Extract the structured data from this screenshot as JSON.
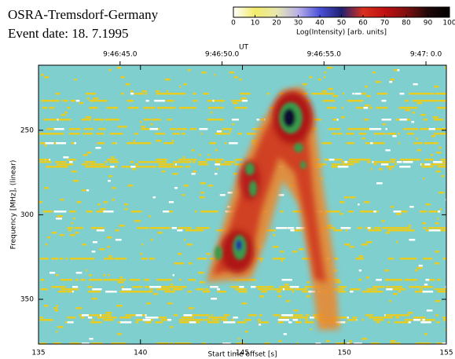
{
  "chart_data": {
    "type": "spectrogram",
    "title": "OSRA-Tremsdorf-Germany",
    "subtitle": "Event date: 18. 7.1995",
    "x_label": "Start time offset [s]",
    "y_label": "Frequency [MHz], (linear)",
    "top_axis_label": "UT",
    "xlim": [
      135,
      155
    ],
    "xticks": [
      135,
      140,
      145,
      150,
      155
    ],
    "x2ticks": [
      {
        "value": 139,
        "label": "9:46:45.0"
      },
      {
        "value": 144,
        "label": "9:46:50.0"
      },
      {
        "value": 149,
        "label": "9:46:55.0"
      },
      {
        "value": 154,
        "label": "9:47: 0.0"
      }
    ],
    "ylim": [
      211.5,
      376.5
    ],
    "yticks": [
      250,
      300,
      350
    ],
    "y_inverted": true,
    "background": "#7fcfcf",
    "colorbar": {
      "label": "Log(Intensity) [arb. units]",
      "lim": [
        0,
        100
      ],
      "ticks": [
        0,
        10,
        20,
        30,
        40,
        50,
        60,
        70,
        80,
        90,
        100
      ],
      "colors": [
        "#ffffff",
        "#f2ec6a",
        "#e8e8b0",
        "#b8b0e8",
        "#4a50d8",
        "#202070",
        "#d83020",
        "#c01010",
        "#801010",
        "#200808",
        "#000000"
      ]
    }
  }
}
